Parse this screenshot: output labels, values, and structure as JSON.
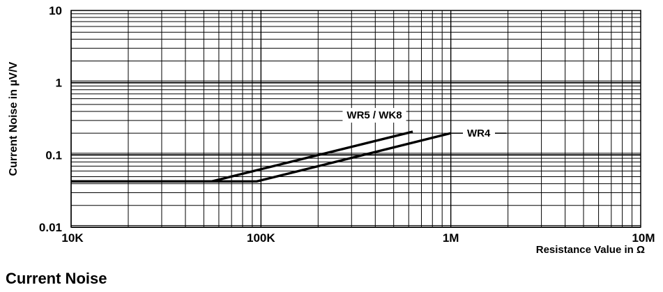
{
  "caption": "Current Noise",
  "chart_data": {
    "type": "line",
    "title": "Current Noise",
    "xlabel": "Resistance Value in Ω",
    "ylabel": "Current Noise in µV/V",
    "x_scale": "log",
    "y_scale": "log",
    "xlim": [
      10000,
      10000000
    ],
    "ylim": [
      0.01,
      10
    ],
    "grid": true,
    "x_ticks": [
      {
        "value": 10000,
        "label": "10K"
      },
      {
        "value": 100000,
        "label": "100K"
      },
      {
        "value": 1000000,
        "label": "1M"
      },
      {
        "value": 10000000,
        "label": "10M"
      }
    ],
    "y_ticks": [
      {
        "value": 0.01,
        "label": "0.01"
      },
      {
        "value": 0.1,
        "label": "0.1"
      },
      {
        "value": 1,
        "label": "1"
      },
      {
        "value": 10,
        "label": "10"
      }
    ],
    "series": [
      {
        "name": "WR5 / WK8",
        "x": [
          10000,
          55000,
          630000
        ],
        "y": [
          0.043,
          0.043,
          0.21
        ]
      },
      {
        "name": "WR4",
        "x": [
          10000,
          95000,
          1000000
        ],
        "y": [
          0.043,
          0.043,
          0.2
        ]
      }
    ]
  }
}
